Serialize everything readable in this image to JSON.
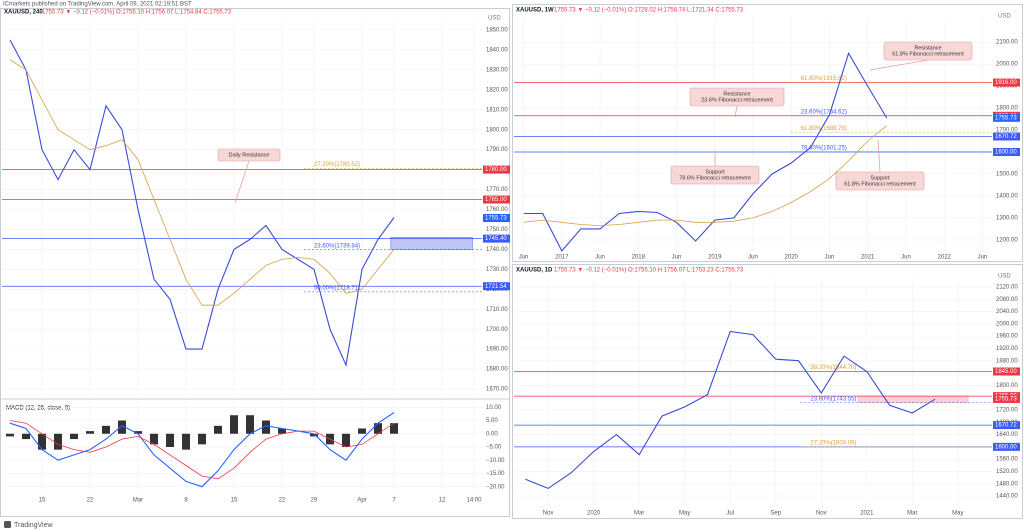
{
  "header": "ICmarkets published on TradingView.com, April 09, 2021 02:19:51 BST",
  "footer": "TradingView",
  "chart_data": [
    {
      "type": "line",
      "title": "XAUUSD, 240",
      "quote": "1755.73 ▼ −0.12 (−0.01%)  O:1755.10  H:1756.07  L:1754.84  C:1755.73",
      "unit": "USD",
      "categories": [
        null,
        null,
        "15",
        null,
        null,
        "22",
        null,
        null,
        "Mar",
        null,
        null,
        "8",
        null,
        null,
        "15",
        null,
        null,
        "22",
        null,
        "29",
        null,
        null,
        "Apr",
        null,
        "7",
        null,
        null,
        "12",
        null,
        "14:00"
      ],
      "series": [
        {
          "color": "#3b4bd8",
          "values": [
            1845,
            1830,
            1790,
            1775,
            1790,
            1780,
            1812,
            1800,
            1760,
            1725,
            1715,
            1690,
            1690,
            1720,
            1740,
            1745,
            1752,
            1740,
            1735,
            1730,
            1700,
            1682,
            1730,
            1745,
            1756,
            null,
            null,
            null,
            null,
            null
          ]
        },
        {
          "color": "#d4a04a",
          "values": [
            1835,
            1830,
            1815,
            1800,
            1795,
            1790,
            1792,
            1795,
            1785,
            1765,
            1745,
            1725,
            1712,
            1712,
            1718,
            1725,
            1732,
            1735,
            1736,
            1735,
            1728,
            1718,
            1720,
            1730,
            1740,
            null,
            null,
            null,
            null,
            null
          ]
        }
      ],
      "ylim": [
        1666,
        1855
      ],
      "yticks": [
        {
          "value": 1670,
          "label": "1670.00"
        },
        {
          "value": 1680,
          "label": "1680.00"
        },
        {
          "value": 1690,
          "label": "1690.00"
        },
        {
          "value": 1700,
          "label": "1700.00"
        },
        {
          "value": 1710,
          "label": "1710.00"
        },
        {
          "value": 1720,
          "label": "1720.00"
        },
        {
          "value": 1730,
          "label": "1730.00"
        },
        {
          "value": 1740,
          "label": "1740.00"
        },
        {
          "value": 1750,
          "label": "1750.00"
        },
        {
          "value": 1760,
          "label": "1760.00"
        },
        {
          "value": 1770,
          "label": "1770.00"
        },
        {
          "value": 1780,
          "label": "1780.00"
        },
        {
          "value": 1790,
          "label": "1790.00"
        },
        {
          "value": 1800,
          "label": "1800.00"
        },
        {
          "value": 1810,
          "label": "1810.00"
        },
        {
          "value": 1820,
          "label": "1820.00"
        },
        {
          "value": 1830,
          "label": "1830.00"
        },
        {
          "value": 1840,
          "label": "1840.00"
        },
        {
          "value": 1850,
          "label": "1850.00"
        }
      ],
      "grid": true,
      "levels": [
        {
          "value": 1780,
          "label": "1780.00",
          "color": "#f23645"
        },
        {
          "value": 1765,
          "label": "1765.00",
          "color": "#f23645"
        },
        {
          "value": 1745.4,
          "label": "1745.40",
          "color": "#3d5afe"
        },
        {
          "value": 1721.54,
          "label": "1721.54",
          "color": "#3d5afe"
        }
      ],
      "fib": [
        {
          "value": 1780.52,
          "label": "27.20%(1780.52)",
          "color": "#e0a030"
        },
        {
          "value": 1739.84,
          "label": "23.60%(1739.84)",
          "color": "#3d5afe"
        },
        {
          "value": 1718.71,
          "label": "50.00%(1718.71)",
          "color": "#3d5afe"
        }
      ],
      "zone": [
        1740,
        1746
      ],
      "zone_color": "#b3bdf5",
      "last": 1755.73,
      "last_color": "#2962ff",
      "callouts": [
        {
          "lines": [
            "Daily Resistance"
          ]
        }
      ]
    },
    {
      "type": "macd",
      "title": "MACD (12, 26, close, 9)",
      "series": [
        {
          "color": "#2962ff",
          "values": [
            4,
            2,
            -6,
            -10,
            -8,
            -6,
            -2,
            3,
            0,
            -8,
            -13,
            -18,
            -20,
            -14,
            -6,
            0,
            3,
            2,
            1,
            0,
            -6,
            -10,
            -2,
            4,
            8,
            null,
            null,
            null,
            null,
            null
          ]
        },
        {
          "color": "#f23645",
          "values": [
            5,
            4,
            0,
            -4,
            -6,
            -7,
            -5,
            -2,
            -1,
            -4,
            -8,
            -12,
            -16,
            -17,
            -13,
            -7,
            -2,
            0,
            1,
            1,
            -2,
            -5,
            -4,
            0,
            4,
            null,
            null,
            null,
            null,
            null
          ]
        }
      ],
      "histogram": [
        -1,
        -2,
        -6,
        -6,
        -2,
        1,
        3,
        5,
        1,
        -4,
        -5,
        -6,
        -4,
        3,
        7,
        7,
        5,
        2,
        0,
        -1,
        -4,
        -5,
        2,
        4,
        4,
        null,
        null,
        null,
        null,
        null
      ],
      "histogram_color": "#333333",
      "ylim": [
        -22,
        12
      ],
      "yticks": [
        {
          "value": 10,
          "label": "10.00"
        },
        {
          "value": 5,
          "label": "5.00"
        },
        {
          "value": 0,
          "label": "0.00"
        },
        {
          "value": -5,
          "label": "−5.00"
        },
        {
          "value": -10,
          "label": "−10.00"
        },
        {
          "value": -15,
          "label": "−15.00"
        },
        {
          "value": -20,
          "label": "−20.00"
        }
      ],
      "grid": true
    },
    {
      "type": "line",
      "title": "XAUUSD, 1W",
      "quote": "1755.73 ▼ −0.12 (−0.01%)  O:1728.02  H:1758.74  L:1721.34  C:1755.73",
      "unit": "USD",
      "categories": [
        "Jun",
        null,
        "2017",
        null,
        "Jun",
        null,
        "2018",
        null,
        "Jun",
        null,
        "2019",
        null,
        "Jun",
        null,
        "2020",
        null,
        "Jun",
        null,
        "2021",
        null,
        "Jun",
        null,
        "2022",
        null,
        "Jun"
      ],
      "series": [
        {
          "color": "#3b4bd8",
          "values": [
            1320,
            1320,
            1150,
            1250,
            1250,
            1320,
            1330,
            1325,
            1280,
            1195,
            1290,
            1300,
            1410,
            1500,
            1550,
            1620,
            1770,
            2050,
            1900,
            1755,
            null,
            null,
            null,
            null,
            null
          ]
        },
        {
          "color": "#d4a04a",
          "values": [
            1280,
            1290,
            1280,
            1270,
            1265,
            1270,
            1280,
            1290,
            1290,
            1280,
            1280,
            1285,
            1300,
            1330,
            1370,
            1420,
            1480,
            1560,
            1650,
            1720,
            null,
            null,
            null,
            null,
            null
          ]
        }
      ],
      "ylim": [
        1145,
        2210
      ],
      "yticks": [
        {
          "value": 1200,
          "label": "1200.00"
        },
        {
          "value": 1300,
          "label": "1300.00"
        },
        {
          "value": 1400,
          "label": "1400.00"
        },
        {
          "value": 1500,
          "label": "1500.00"
        },
        {
          "value": 1600,
          "label": "1600.00"
        },
        {
          "value": 1700,
          "label": "1700.00"
        },
        {
          "value": 1800,
          "label": "1800.00"
        },
        {
          "value": 1900,
          "label": "1900.00"
        },
        {
          "value": 2000,
          "label": "2000.00"
        },
        {
          "value": 2100,
          "label": "2100.00"
        }
      ],
      "grid": true,
      "levels": [
        {
          "value": 1916,
          "label": "1916.00",
          "color": "#f23645"
        },
        {
          "value": 1765,
          "label": "1765.00",
          "color": "#f23645"
        },
        {
          "value": 1670.72,
          "label": "1670.72",
          "color": "#3d5afe"
        },
        {
          "value": 1600,
          "label": "1600.00",
          "color": "#3d5afe"
        }
      ],
      "fib": [
        {
          "value": 1915.82,
          "label": "61.80%(1915.82)",
          "color": "#e0a030"
        },
        {
          "value": 1764.62,
          "label": "23.60%(1764.62)",
          "color": "#3d5afe"
        },
        {
          "value": 1689.78,
          "label": "61.80%(1689.78)",
          "color": "#e0a030"
        },
        {
          "value": 1601.25,
          "label": "78.60%(1601.25)",
          "color": "#3d5afe"
        }
      ],
      "last": 1755.73,
      "last_color": "#2962ff",
      "callouts": [
        {
          "lines": [
            "Resistance",
            "61.8% Fibonacci retracement"
          ]
        },
        {
          "lines": [
            "Resistance",
            "23.6% Fibonacci retracement"
          ]
        },
        {
          "lines": [
            "Support",
            "78.6% Fibonacci retracement"
          ]
        },
        {
          "lines": [
            "Support",
            "61.8% Fibonacci retracement"
          ]
        }
      ]
    },
    {
      "type": "line",
      "title": "XAUUSD, 1D",
      "quote": "1755.73 ▼ −0.12 (−0.01%)  O:1755.10  H:1756.07  L:1753.23  C:1755.73",
      "unit": "USD",
      "categories": [
        null,
        "Nov",
        null,
        "2020",
        null,
        "Mar",
        null,
        "May",
        null,
        "Jul",
        null,
        "Sep",
        null,
        "Nov",
        null,
        "2021",
        null,
        "Mar",
        null,
        "May",
        null
      ],
      "series": [
        {
          "color": "#3b4bd8",
          "values": [
            1495,
            1465,
            1515,
            1585,
            1640,
            1575,
            1700,
            1730,
            1770,
            1975,
            1965,
            1885,
            1880,
            1775,
            1895,
            1845,
            1735,
            1710,
            1755,
            null,
            null
          ]
        }
      ],
      "ylim": [
        1411,
        2149
      ],
      "yticks": [
        {
          "value": 1440,
          "label": "1440.00"
        },
        {
          "value": 1480,
          "label": "1480.00"
        },
        {
          "value": 1520,
          "label": "1520.00"
        },
        {
          "value": 1560,
          "label": "1560.00"
        },
        {
          "value": 1600,
          "label": "1600.00"
        },
        {
          "value": 1640,
          "label": "1640.00"
        },
        {
          "value": 1680,
          "label": "1680.00"
        },
        {
          "value": 1720,
          "label": "1720.00"
        },
        {
          "value": 1760,
          "label": "1760.00"
        },
        {
          "value": 1800,
          "label": "1800.00"
        },
        {
          "value": 1840,
          "label": "1840.00"
        },
        {
          "value": 1880,
          "label": "1880.00"
        },
        {
          "value": 1920,
          "label": "1920.00"
        },
        {
          "value": 1960,
          "label": "1960.00"
        },
        {
          "value": 2000,
          "label": "2000.00"
        },
        {
          "value": 2040,
          "label": "2040.00"
        },
        {
          "value": 2080,
          "label": "2080.00"
        },
        {
          "value": 2120,
          "label": "2120.00"
        }
      ],
      "grid": true,
      "levels": [
        {
          "value": 1845,
          "label": "1845.00",
          "color": "#f23645"
        },
        {
          "value": 1765,
          "label": "1765.00",
          "color": "#f23645"
        },
        {
          "value": 1670.72,
          "label": "1670.72",
          "color": "#3d5afe"
        },
        {
          "value": 1600,
          "label": "1600.00",
          "color": "#3d5afe"
        }
      ],
      "fib": [
        {
          "value": 1844.7,
          "label": "38.20%(1844.70)",
          "color": "#e0a030"
        },
        {
          "value": 1743.55,
          "label": "23.60%(1743.55)",
          "color": "#3d5afe"
        },
        {
          "value": 1600.09,
          "label": "27.20%(1600.09)",
          "color": "#e0a030"
        }
      ],
      "zone": [
        1745,
        1765
      ],
      "zone_color": "#f8cccc",
      "last": 1755.73,
      "last_color": "#f23645"
    }
  ]
}
